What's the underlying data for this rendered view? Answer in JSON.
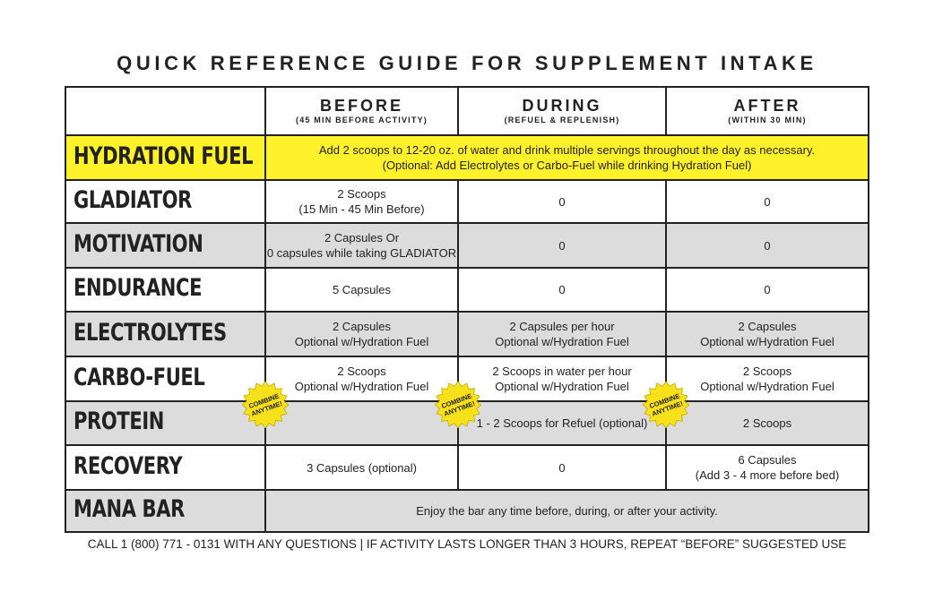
{
  "title": "QUICK REFERENCE GUIDE FOR SUPPLEMENT INTAKE",
  "table": {
    "header": [
      {
        "title": "BEFORE",
        "subtitle": "(45 MIN BEFORE ACTIVITY)"
      },
      {
        "title": "DURING",
        "subtitle": "(REFUEL & REPLENISH)"
      },
      {
        "title": "AFTER",
        "subtitle": "(WITHIN 30 MIN)"
      }
    ],
    "rows": [
      {
        "name": "HYDRATION FUEL",
        "note": [
          "Add 2 scoops to 12-20 oz. of water and drink multiple servings throughout the day as necessary.",
          "(Optional: Add Electrolytes or Carbo-Fuel while drinking Hydration Fuel)"
        ]
      },
      {
        "name": "GLADIATOR",
        "cells": [
          [
            "2 Scoops",
            "(15 Min - 45 Min Before)"
          ],
          [
            "0"
          ],
          [
            "0"
          ]
        ]
      },
      {
        "name": "MOTIVATION",
        "cells": [
          [
            "2 Capsules Or",
            "0 capsules while taking GLADIATOR"
          ],
          [
            "0"
          ],
          [
            "0"
          ]
        ]
      },
      {
        "name": "ENDURANCE",
        "cells": [
          [
            "5 Capsules"
          ],
          [
            "0"
          ],
          [
            "0"
          ]
        ]
      },
      {
        "name": "ELECTROLYTES",
        "cells": [
          [
            "2 Capsules",
            "Optional w/Hydration Fuel"
          ],
          [
            "2 Capsules per hour",
            "Optional w/Hydration Fuel"
          ],
          [
            "2 Capsules",
            "Optional w/Hydration Fuel"
          ]
        ]
      },
      {
        "name": "CARBO-FUEL",
        "cells": [
          [
            "2 Scoops",
            "Optional w/Hydration Fuel"
          ],
          [
            "2 Scoops in water per hour",
            "Optional w/Hydration Fuel"
          ],
          [
            "2 Scoops",
            "Optional w/Hydration Fuel"
          ]
        ]
      },
      {
        "name": "PROTEIN",
        "cells": [
          [],
          [
            "1 - 2 Scoops for Refuel (optional)"
          ],
          [
            "2 Scoops"
          ]
        ]
      },
      {
        "name": "RECOVERY",
        "cells": [
          [
            "3 Capsules (optional)"
          ],
          [
            "0"
          ],
          [
            "6 Capsules",
            "(Add 3 - 4 more before bed)"
          ]
        ]
      },
      {
        "name": "MANA BAR",
        "note": [
          "Enjoy the bar any time before, during, or after your activity."
        ]
      }
    ]
  },
  "badges": [
    [
      "COMBINE",
      "ANYTIME!"
    ],
    [
      "COMBINE",
      "ANYTIME!"
    ],
    [
      "COMBINE",
      "ANYTIME!"
    ]
  ],
  "footer": "CALL 1 (800) 771 - 0131 WITH ANY QUESTIONS | IF ACTIVITY LASTS LONGER THAN 3 HOURS, REPEAT “BEFORE” SUGGESTED USE"
}
